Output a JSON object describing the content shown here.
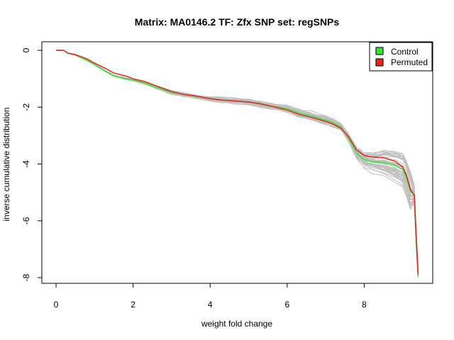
{
  "chart_data": {
    "type": "line",
    "title": "Matrix: MA0146.2 TF: Zfx SNP set: regSNPs",
    "xlabel": "weight fold change",
    "ylabel": "inverse cumulative distribution",
    "xlim": [
      0,
      9.5
    ],
    "ylim": [
      -8,
      0
    ],
    "xticks": [
      0,
      2,
      4,
      6,
      8
    ],
    "yticks": [
      0,
      -2,
      -4,
      -6,
      -8
    ],
    "grid": false,
    "legend": {
      "position": "top-right",
      "entries": [
        "Control",
        "Permuted"
      ]
    },
    "colors": {
      "Control": "#33e633",
      "Permuted": "#e8241e",
      "background_series": "#bfbfbf"
    },
    "series": [
      {
        "name": "Permuted",
        "x": [
          0,
          0.2,
          0.3,
          0.5,
          0.8,
          1.0,
          1.3,
          1.5,
          1.8,
          2.0,
          2.3,
          2.6,
          3.0,
          3.3,
          3.6,
          4.0,
          4.3,
          4.6,
          5.0,
          5.3,
          5.6,
          6.0,
          6.3,
          6.6,
          7.0,
          7.2,
          7.4,
          7.6,
          7.8,
          8.0,
          8.2,
          8.5,
          8.8,
          9.0,
          9.1,
          9.2,
          9.3,
          9.35,
          9.4
        ],
        "y": [
          0,
          0,
          -0.1,
          -0.15,
          -0.3,
          -0.45,
          -0.65,
          -0.8,
          -0.9,
          -1.0,
          -1.1,
          -1.25,
          -1.45,
          -1.55,
          -1.6,
          -1.7,
          -1.75,
          -1.78,
          -1.82,
          -1.88,
          -1.97,
          -2.1,
          -2.25,
          -2.35,
          -2.5,
          -2.6,
          -2.75,
          -3.05,
          -3.5,
          -3.7,
          -3.75,
          -3.78,
          -3.9,
          -4.1,
          -4.4,
          -4.9,
          -5.1,
          -6.5,
          -7.9
        ]
      },
      {
        "name": "Control",
        "x": [
          0,
          0.2,
          0.3,
          0.5,
          0.8,
          1.0,
          1.3,
          1.5,
          1.8,
          2.0,
          2.3,
          2.6,
          3.0,
          3.3,
          3.6,
          4.0,
          4.3,
          4.6,
          5.0,
          5.3,
          5.6,
          6.0,
          6.3,
          6.6,
          7.0,
          7.2,
          7.4,
          7.6,
          7.8,
          8.0,
          8.2,
          8.5,
          8.8,
          9.0,
          9.1,
          9.2,
          9.3,
          9.35,
          9.4
        ],
        "y": [
          0,
          0,
          -0.1,
          -0.17,
          -0.35,
          -0.5,
          -0.75,
          -0.9,
          -1.0,
          -1.05,
          -1.15,
          -1.3,
          -1.48,
          -1.55,
          -1.62,
          -1.7,
          -1.75,
          -1.78,
          -1.82,
          -1.9,
          -1.98,
          -2.05,
          -2.2,
          -2.3,
          -2.45,
          -2.55,
          -2.7,
          -3.1,
          -3.6,
          -3.85,
          -3.92,
          -3.95,
          -4.05,
          -4.2,
          -4.5,
          -4.95,
          -5.1,
          -6.7,
          -7.95
        ]
      }
    ],
    "background_series_count": 40
  }
}
